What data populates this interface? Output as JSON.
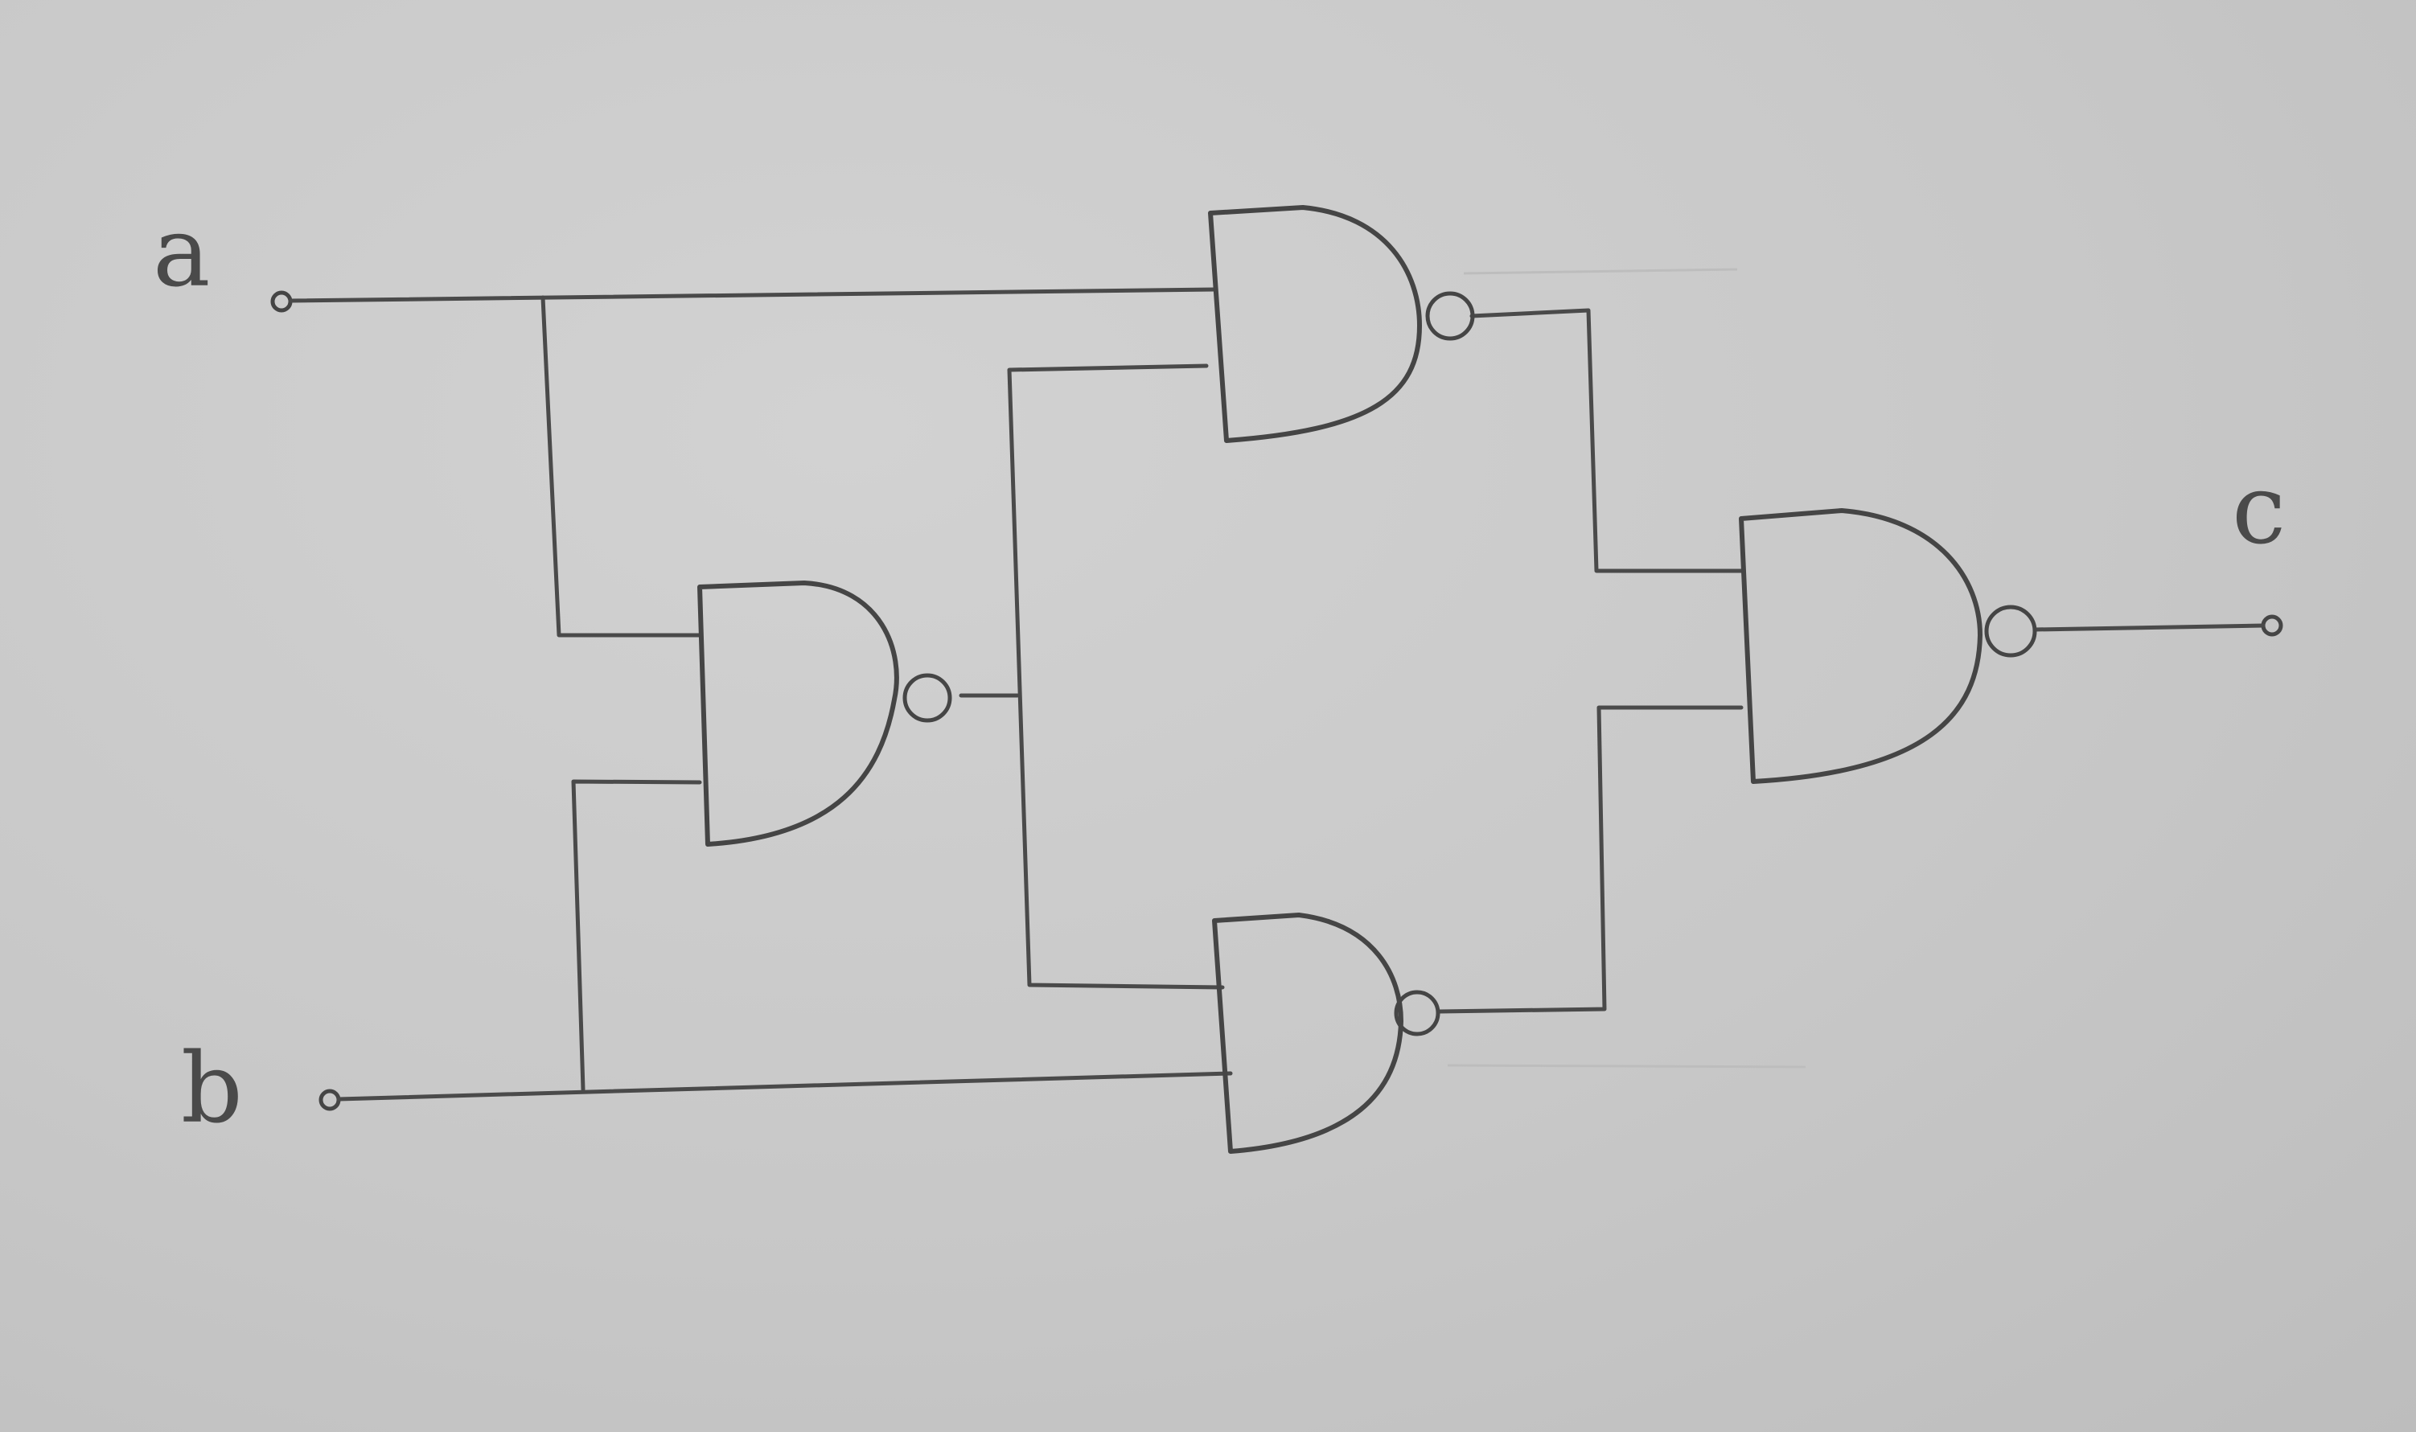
{
  "diagram": {
    "labels": {
      "input_a": "a",
      "input_b": "b",
      "output_c": "c"
    },
    "gate_type": "NAND",
    "gates": [
      {
        "id": "g1",
        "type": "NAND",
        "inputs": [
          "a",
          "b"
        ]
      },
      {
        "id": "g2",
        "type": "NAND",
        "inputs": [
          "a",
          "g1"
        ]
      },
      {
        "id": "g3",
        "type": "NAND",
        "inputs": [
          "g1",
          "b"
        ]
      },
      {
        "id": "g4",
        "type": "NAND",
        "inputs": [
          "g2",
          "g3"
        ],
        "output": "c"
      }
    ],
    "colors": {
      "paper": "#c9c9c9",
      "pencil": "#454545"
    }
  }
}
